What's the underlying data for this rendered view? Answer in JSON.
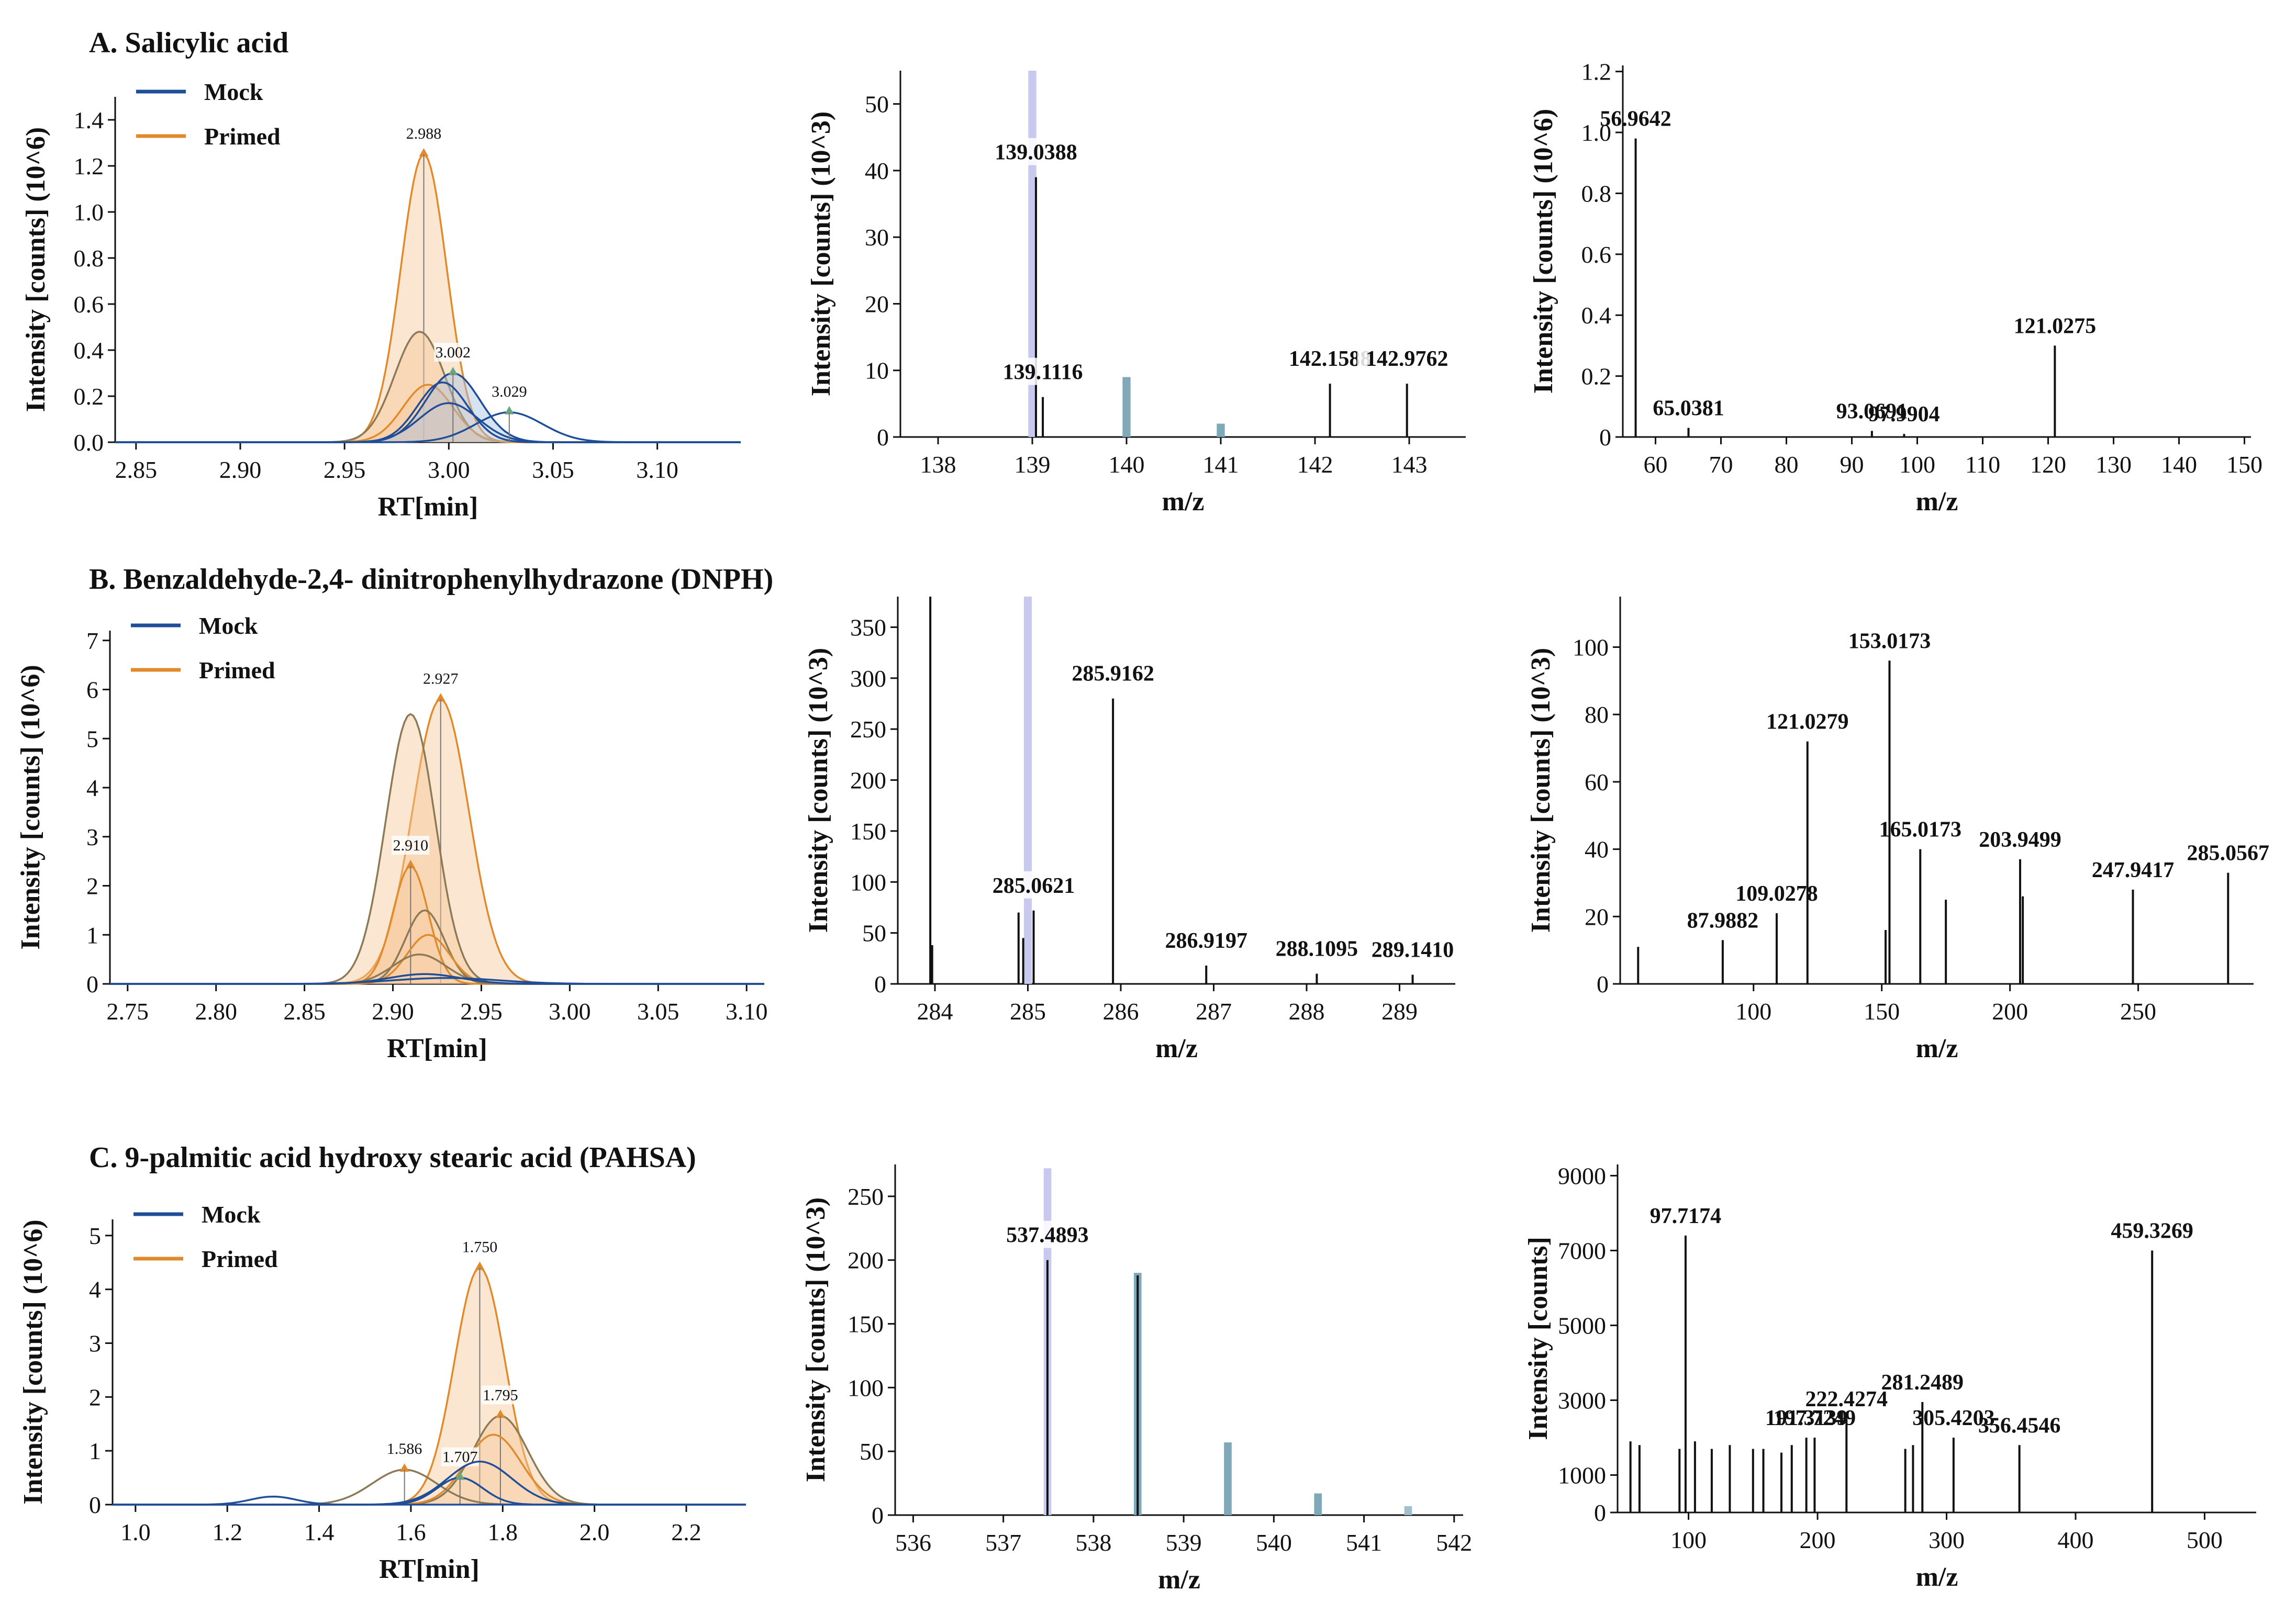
{
  "sections": [
    {
      "title": "A. Salicylic acid",
      "chrom": {
        "type": "line",
        "xlabel": "RT[min]",
        "ylabel": "Intensity  [counts]  (10^6)",
        "xlim": [
          2.84,
          3.14
        ],
        "ylim": [
          0,
          1.5
        ],
        "xticks": [
          2.85,
          2.9,
          2.95,
          3.0,
          3.05,
          3.1
        ],
        "xtick_labels": [
          "2.85",
          "2.90",
          "2.95",
          "3.00",
          "3.05",
          "3.10"
        ],
        "yticks": [
          0,
          0.2,
          0.4,
          0.6,
          0.8,
          1.0,
          1.2,
          1.4
        ],
        "ytick_labels": [
          "0.0",
          "0.2",
          "0.4",
          "0.6",
          "0.8",
          "1.0",
          "1.2",
          "1.4"
        ],
        "legend": [
          "Mock",
          "Primed"
        ],
        "peaks": [
          {
            "rt": 2.988,
            "height": 1.25,
            "width": 0.011,
            "label": "2.988",
            "group": "Primed",
            "fill": true
          },
          {
            "rt": 2.986,
            "height": 0.48,
            "width": 0.012,
            "label": "",
            "group": "Primed",
            "fill": true
          },
          {
            "rt": 2.99,
            "height": 0.25,
            "width": 0.012,
            "label": "",
            "group": "Primed",
            "fill": true
          },
          {
            "rt": 3.002,
            "height": 0.3,
            "width": 0.013,
            "label": "3.002",
            "group": "Mock",
            "fill": true
          },
          {
            "rt": 2.997,
            "height": 0.26,
            "width": 0.012,
            "label": "",
            "group": "Mock",
            "fill": false
          },
          {
            "rt": 3.0,
            "height": 0.17,
            "width": 0.014,
            "label": "",
            "group": "Mock",
            "fill": false
          },
          {
            "rt": 3.029,
            "height": 0.13,
            "width": 0.016,
            "label": "3.029",
            "group": "Mock",
            "fill": false
          }
        ]
      },
      "ms1": {
        "type": "bar",
        "xlabel": "m/z",
        "ylabel": "Intensity  [counts]  (10^3)",
        "xlim": [
          137.6,
          143.6
        ],
        "ylim": [
          0,
          55
        ],
        "xticks": [
          138,
          139,
          140,
          141,
          142,
          143
        ],
        "xtick_labels": [
          "138",
          "139",
          "140",
          "141",
          "142",
          "143"
        ],
        "yticks": [
          0,
          10,
          20,
          30,
          40,
          50
        ],
        "ytick_labels": [
          "0",
          "10",
          "20",
          "30",
          "40",
          "50"
        ],
        "isotope_bars": [
          {
            "mz": 139.0,
            "value": 55,
            "color": "#c9c8ee"
          },
          {
            "mz": 140.0,
            "value": 9,
            "color": "#7fa8b8"
          },
          {
            "mz": 141.0,
            "value": 2,
            "color": "#7fa8b8"
          }
        ],
        "peaks": [
          {
            "mz": 139.0388,
            "value": 39,
            "label": "139.0388"
          },
          {
            "mz": 139.1116,
            "value": 6,
            "label": "139.1116"
          },
          {
            "mz": 142.1588,
            "value": 8,
            "label": "142.1588"
          },
          {
            "mz": 142.9762,
            "value": 8,
            "label": "142.9762"
          }
        ]
      },
      "ms2": {
        "type": "bar",
        "xlabel": "m/z",
        "ylabel": "Intensity  [counts]  (10^6)",
        "xlim": [
          55,
          151
        ],
        "ylim": [
          0,
          1.22
        ],
        "xticks": [
          60,
          70,
          80,
          90,
          100,
          110,
          120,
          130,
          140,
          150
        ],
        "xtick_labels": [
          "60",
          "70",
          "80",
          "90",
          "100",
          "110",
          "120",
          "130",
          "140",
          "150"
        ],
        "yticks": [
          0,
          0.2,
          0.4,
          0.6,
          0.8,
          1.0,
          1.2
        ],
        "ytick_labels": [
          "0",
          "0.2",
          "0.4",
          "0.6",
          "0.8",
          "1.0",
          "1.2"
        ],
        "peaks": [
          {
            "mz": 56.9642,
            "value": 0.98,
            "label": "56.9642"
          },
          {
            "mz": 65.0381,
            "value": 0.03,
            "label": "65.0381"
          },
          {
            "mz": 93.0691,
            "value": 0.02,
            "label": "93.0691"
          },
          {
            "mz": 97.9904,
            "value": 0.01,
            "label": "97.9904"
          },
          {
            "mz": 121.0275,
            "value": 0.3,
            "label": "121.0275"
          }
        ]
      }
    },
    {
      "title": "B. Benzaldehyde-2,4- dinitrophenylhydrazone  (DNPH)",
      "chrom": {
        "type": "line",
        "xlabel": "RT[min]",
        "ylabel": "Intensity  [counts]  (10^6)",
        "xlim": [
          2.74,
          3.11
        ],
        "ylim": [
          0,
          7.2
        ],
        "xticks": [
          2.75,
          2.8,
          2.85,
          2.9,
          2.95,
          3.0,
          3.05,
          3.1
        ],
        "xtick_labels": [
          "2.75",
          "2.80",
          "2.85",
          "2.90",
          "2.95",
          "3.00",
          "3.05",
          "3.10"
        ],
        "yticks": [
          0,
          1,
          2,
          3,
          4,
          5,
          6,
          7
        ],
        "ytick_labels": [
          "0",
          "1",
          "2",
          "3",
          "4",
          "5",
          "6",
          "7"
        ],
        "legend": [
          "Mock",
          "Primed"
        ],
        "peaks": [
          {
            "rt": 2.927,
            "height": 5.8,
            "width": 0.016,
            "label": "2.927",
            "group": "Primed",
            "fill": true
          },
          {
            "rt": 2.91,
            "height": 5.5,
            "width": 0.014,
            "label": "",
            "group": "Primed",
            "fill": true
          },
          {
            "rt": 2.91,
            "height": 2.4,
            "width": 0.01,
            "label": "2.910",
            "group": "Primed",
            "fill": true
          },
          {
            "rt": 2.918,
            "height": 1.5,
            "width": 0.011,
            "label": "",
            "group": "Primed",
            "fill": false
          },
          {
            "rt": 2.92,
            "height": 1.0,
            "width": 0.012,
            "label": "",
            "group": "Primed",
            "fill": false
          },
          {
            "rt": 2.915,
            "height": 0.6,
            "width": 0.015,
            "label": "",
            "group": "Primed",
            "fill": false
          },
          {
            "rt": 2.918,
            "height": 0.2,
            "width": 0.02,
            "label": "",
            "group": "Mock",
            "fill": false
          },
          {
            "rt": 2.93,
            "height": 0.12,
            "width": 0.03,
            "label": "",
            "group": "Mock",
            "fill": false
          }
        ]
      },
      "ms1": {
        "type": "bar",
        "xlabel": "m/z",
        "ylabel": "Intensity  [counts]  (10^3)",
        "xlim": [
          283.6,
          289.6
        ],
        "ylim": [
          0,
          380
        ],
        "xticks": [
          284,
          285,
          286,
          287,
          288,
          289
        ],
        "xtick_labels": [
          "284",
          "285",
          "286",
          "287",
          "288",
          "289"
        ],
        "yticks": [
          0,
          50,
          100,
          150,
          200,
          250,
          300,
          350
        ],
        "ytick_labels": [
          "0",
          "50",
          "100",
          "150",
          "200",
          "250",
          "300",
          "350"
        ],
        "isotope_bars": [
          {
            "mz": 285.0,
            "value": 380,
            "color": "#c9c8ee"
          }
        ],
        "peaks": [
          {
            "mz": 283.95,
            "value": 380,
            "label": ""
          },
          {
            "mz": 283.97,
            "value": 38,
            "label": ""
          },
          {
            "mz": 284.9,
            "value": 70,
            "label": ""
          },
          {
            "mz": 284.95,
            "value": 45,
            "label": ""
          },
          {
            "mz": 285.0621,
            "value": 72,
            "label": "285.0621"
          },
          {
            "mz": 285.9162,
            "value": 280,
            "label": "285.9162"
          },
          {
            "mz": 286.9197,
            "value": 18,
            "label": "286.9197"
          },
          {
            "mz": 288.1095,
            "value": 10,
            "label": "288.1095"
          },
          {
            "mz": 289.141,
            "value": 9,
            "label": "289.1410"
          }
        ]
      },
      "ms2": {
        "type": "bar",
        "xlabel": "m/z",
        "ylabel": "Intensity  [counts]  (10^3)",
        "xlim": [
          48,
          295
        ],
        "ylim": [
          0,
          115
        ],
        "xticks": [
          100,
          150,
          200,
          250
        ],
        "xtick_labels": [
          "100",
          "150",
          "200",
          "250"
        ],
        "yticks": [
          0,
          20,
          40,
          60,
          80,
          100
        ],
        "ytick_labels": [
          "0",
          "20",
          "40",
          "60",
          "80",
          "100"
        ],
        "peaks": [
          {
            "mz": 55.0,
            "value": 11,
            "label": ""
          },
          {
            "mz": 87.9882,
            "value": 13,
            "label": "87.9882"
          },
          {
            "mz": 109.0278,
            "value": 21,
            "label": "109.0278"
          },
          {
            "mz": 121.0279,
            "value": 72,
            "label": "121.0279"
          },
          {
            "mz": 151.5,
            "value": 16,
            "label": ""
          },
          {
            "mz": 153.0173,
            "value": 96,
            "label": "153.0173"
          },
          {
            "mz": 165.0173,
            "value": 40,
            "label": "165.0173"
          },
          {
            "mz": 175.0,
            "value": 25,
            "label": ""
          },
          {
            "mz": 203.9499,
            "value": 37,
            "label": "203.9499"
          },
          {
            "mz": 205.0,
            "value": 26,
            "label": ""
          },
          {
            "mz": 247.9417,
            "value": 28,
            "label": "247.9417"
          },
          {
            "mz": 285.0567,
            "value": 33,
            "label": "285.0567"
          }
        ]
      }
    },
    {
      "title": "C. 9-palmitic acid hydroxy stearic acid (PAHSA)",
      "chrom": {
        "type": "line",
        "xlabel": "RT[min]",
        "ylabel": "Intensity  [counts]  (10^6)",
        "xlim": [
          0.95,
          2.33
        ],
        "ylim": [
          0,
          5.3
        ],
        "xticks": [
          1.0,
          1.2,
          1.4,
          1.6,
          1.8,
          2.0,
          2.2
        ],
        "xtick_labels": [
          "1.0",
          "1.2",
          "1.4",
          "1.6",
          "1.8",
          "2.0",
          "2.2"
        ],
        "yticks": [
          0,
          1,
          2,
          3,
          4,
          5
        ],
        "ytick_labels": [
          "0",
          "1",
          "2",
          "3",
          "4",
          "5"
        ],
        "legend": [
          "Mock",
          "Primed"
        ],
        "peaks": [
          {
            "rt": 1.75,
            "height": 4.4,
            "width": 0.055,
            "label": "1.750",
            "group": "Primed",
            "fill": true
          },
          {
            "rt": 1.795,
            "height": 1.65,
            "width": 0.06,
            "label": "1.795",
            "group": "Primed",
            "fill": true
          },
          {
            "rt": 1.78,
            "height": 1.3,
            "width": 0.06,
            "label": "",
            "group": "Primed",
            "fill": false
          },
          {
            "rt": 1.586,
            "height": 0.65,
            "width": 0.07,
            "label": "1.586",
            "group": "Primed",
            "fill": false
          },
          {
            "rt": 1.707,
            "height": 0.5,
            "width": 0.05,
            "label": "1.707",
            "group": "Mock",
            "fill": false
          },
          {
            "rt": 1.75,
            "height": 0.8,
            "width": 0.07,
            "label": "",
            "group": "Mock",
            "fill": false
          },
          {
            "rt": 1.3,
            "height": 0.15,
            "width": 0.05,
            "label": "",
            "group": "Mock",
            "fill": false
          }
        ]
      },
      "ms1": {
        "type": "bar",
        "xlabel": "m/z",
        "ylabel": "Intensity  [counts]  (10^3)",
        "xlim": [
          535.8,
          542.1
        ],
        "ylim": [
          0,
          275
        ],
        "xticks": [
          536,
          537,
          538,
          539,
          540,
          541,
          542
        ],
        "xtick_labels": [
          "536",
          "537",
          "538",
          "539",
          "540",
          "541",
          "542"
        ],
        "yticks": [
          0,
          50,
          100,
          150,
          200,
          250
        ],
        "ytick_labels": [
          "0",
          "50",
          "100",
          "150",
          "200",
          "250"
        ],
        "isotope_bars": [
          {
            "mz": 537.49,
            "value": 272,
            "color": "#c9c8ee"
          },
          {
            "mz": 538.49,
            "value": 190,
            "color": "#7fa8b8"
          },
          {
            "mz": 539.49,
            "value": 57,
            "color": "#7fa8b8"
          },
          {
            "mz": 540.49,
            "value": 17,
            "color": "#7fa8b8"
          },
          {
            "mz": 541.49,
            "value": 7,
            "color": "#9fc0cc"
          }
        ],
        "peaks": [
          {
            "mz": 537.4893,
            "value": 200,
            "label": "537.4893"
          },
          {
            "mz": 538.49,
            "value": 188,
            "label": ""
          }
        ]
      },
      "ms2": {
        "type": "bar",
        "xlabel": "m/z",
        "ylabel": "Intensity  [counts]",
        "xlim": [
          45,
          540
        ],
        "ylim": [
          0,
          9300
        ],
        "xticks": [
          100,
          200,
          300,
          400,
          500
        ],
        "xtick_labels": [
          "100",
          "200",
          "300",
          "400",
          "500"
        ],
        "yticks": [
          0,
          1000,
          3000,
          5000,
          7000,
          9000
        ],
        "ytick_labels": [
          "0",
          "1000",
          "3000",
          "5000",
          "7000",
          "9000"
        ],
        "peaks": [
          {
            "mz": 55,
            "value": 1900,
            "label": ""
          },
          {
            "mz": 62,
            "value": 1800,
            "label": ""
          },
          {
            "mz": 93,
            "value": 1700,
            "label": ""
          },
          {
            "mz": 97.7174,
            "value": 7400,
            "label": "97.7174"
          },
          {
            "mz": 105,
            "value": 1900,
            "label": ""
          },
          {
            "mz": 118,
            "value": 1700,
            "label": ""
          },
          {
            "mz": 132,
            "value": 1800,
            "label": ""
          },
          {
            "mz": 150,
            "value": 1700,
            "label": ""
          },
          {
            "mz": 158,
            "value": 1700,
            "label": ""
          },
          {
            "mz": 172,
            "value": 1600,
            "label": ""
          },
          {
            "mz": 180,
            "value": 1800,
            "label": ""
          },
          {
            "mz": 191.3139,
            "value": 2000,
            "label": "191.3139"
          },
          {
            "mz": 197.7249,
            "value": 2000,
            "label": "197.7249"
          },
          {
            "mz": 222.4274,
            "value": 2500,
            "label": "222.4274"
          },
          {
            "mz": 268,
            "value": 1700,
            "label": ""
          },
          {
            "mz": 274,
            "value": 1800,
            "label": ""
          },
          {
            "mz": 281.2489,
            "value": 2950,
            "label": "281.2489"
          },
          {
            "mz": 305.4203,
            "value": 2000,
            "label": "305.4203"
          },
          {
            "mz": 356.4546,
            "value": 1800,
            "label": "356.4546"
          },
          {
            "mz": 459.3269,
            "value": 7000,
            "label": "459.3269"
          }
        ]
      }
    }
  ],
  "colors": {
    "mock": "#1f4e99",
    "primed": "#e08a2c",
    "primed_fill": "#f6c79a",
    "axis": "#111111",
    "stick": "#111111",
    "green": "#6aa583"
  }
}
